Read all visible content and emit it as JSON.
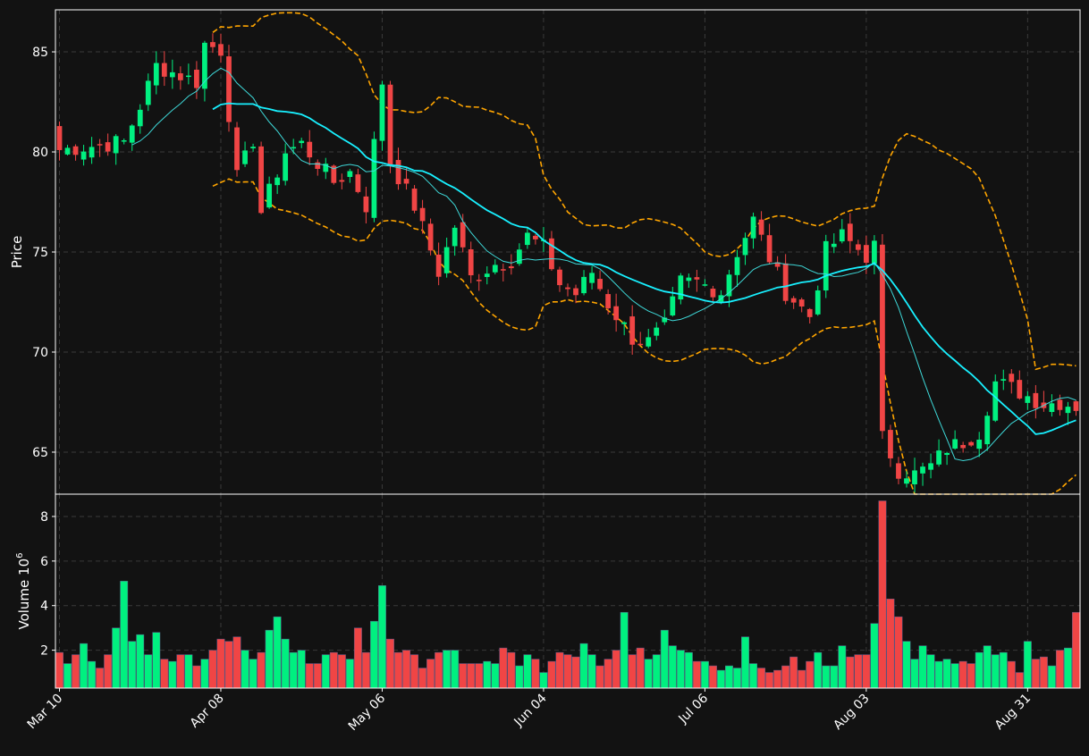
{
  "colors": {
    "background": "#121212",
    "grid": "#3a3a3a",
    "up": "#00f080",
    "down": "#f04545",
    "ma_long": "#18f0ff",
    "ma_short": "#3ed8d8",
    "bands": "#ffa500",
    "text": "#ffffff"
  },
  "chart_data": {
    "type": "candlestick",
    "grid": true,
    "price_panel": {
      "ylabel": "Price",
      "ylim": [
        62.9,
        87.1
      ],
      "yticks": [
        "65",
        "70",
        "75",
        "80",
        "85"
      ],
      "ytick_values": [
        65,
        70,
        75,
        80,
        85
      ]
    },
    "volume_panel": {
      "ylabel": "Volume",
      "ylabel_exponent": "10",
      "ylabel_exponent_power": "6",
      "ylim": [
        0.3,
        9.0
      ],
      "yticks": [
        "2",
        "4",
        "6",
        "8"
      ],
      "ytick_values": [
        2,
        4,
        6,
        8
      ]
    },
    "x_ticks": [
      {
        "label": "Mar 10",
        "index": 0
      },
      {
        "label": "Apr 08",
        "index": 20
      },
      {
        "label": "May 06",
        "index": 40
      },
      {
        "label": "Jun 04",
        "index": 60
      },
      {
        "label": "Jul 06",
        "index": 80
      },
      {
        "label": "Aug 03",
        "index": 100
      },
      {
        "label": "Aug 31",
        "index": 120
      }
    ],
    "n_bars": 127,
    "ohlc_anchors": [
      [
        0,
        80.1
      ],
      [
        8,
        80.5
      ],
      [
        10,
        82.3
      ],
      [
        12,
        84.3
      ],
      [
        17,
        83.5
      ],
      [
        18,
        85.4
      ],
      [
        20,
        85.1
      ],
      [
        22,
        78.7
      ],
      [
        24,
        80.6
      ],
      [
        25,
        77.0
      ],
      [
        28,
        80.0
      ],
      [
        30,
        80.4
      ],
      [
        34,
        78.5
      ],
      [
        36,
        79.0
      ],
      [
        38,
        77.3
      ],
      [
        40,
        83.5
      ],
      [
        41,
        79.5
      ],
      [
        44,
        77.3
      ],
      [
        47,
        74.0
      ],
      [
        49,
        76.3
      ],
      [
        51,
        73.7
      ],
      [
        54,
        74.4
      ],
      [
        56,
        74.6
      ],
      [
        58,
        75.8
      ],
      [
        60,
        75.2
      ],
      [
        62,
        73.4
      ],
      [
        64,
        72.9
      ],
      [
        66,
        74.0
      ],
      [
        68,
        72.4
      ],
      [
        71,
        70.7
      ],
      [
        73,
        70.5
      ],
      [
        75,
        71.3
      ],
      [
        77,
        73.5
      ],
      [
        79,
        73.5
      ],
      [
        82,
        73.0
      ],
      [
        84,
        75.0
      ],
      [
        86,
        76.6
      ],
      [
        88,
        74.7
      ],
      [
        90,
        73.0
      ],
      [
        93,
        71.8
      ],
      [
        95,
        75.1
      ],
      [
        97,
        75.8
      ],
      [
        100,
        74.8
      ],
      [
        101,
        75.3
      ],
      [
        102,
        65.7
      ],
      [
        104,
        64.1
      ],
      [
        106,
        63.9
      ],
      [
        108,
        64.3
      ],
      [
        110,
        65.2
      ],
      [
        112,
        65.5
      ],
      [
        114,
        66.0
      ],
      [
        116,
        68.5
      ],
      [
        118,
        68.2
      ],
      [
        120,
        67.8
      ],
      [
        122,
        67.4
      ],
      [
        124,
        67.5
      ],
      [
        126,
        67.3
      ]
    ],
    "ma_short_start": 9,
    "ma_long_start": 19,
    "volume_anchors": [
      [
        0,
        1.9
      ],
      [
        1,
        1.4
      ],
      [
        2,
        1.8
      ],
      [
        3,
        2.3
      ],
      [
        4,
        1.5
      ],
      [
        5,
        1.2
      ],
      [
        6,
        1.8
      ],
      [
        7,
        3.0
      ],
      [
        8,
        5.1
      ],
      [
        9,
        2.4
      ],
      [
        10,
        2.7
      ],
      [
        11,
        1.8
      ],
      [
        12,
        2.8
      ],
      [
        13,
        1.6
      ],
      [
        14,
        1.5
      ],
      [
        15,
        1.8
      ],
      [
        16,
        1.8
      ],
      [
        17,
        1.3
      ],
      [
        18,
        1.6
      ],
      [
        19,
        2.0
      ],
      [
        20,
        2.5
      ],
      [
        21,
        2.4
      ],
      [
        22,
        2.6
      ],
      [
        23,
        2.0
      ],
      [
        24,
        1.6
      ],
      [
        25,
        1.9
      ],
      [
        26,
        2.9
      ],
      [
        27,
        3.5
      ],
      [
        28,
        2.5
      ],
      [
        29,
        1.9
      ],
      [
        30,
        2.0
      ],
      [
        31,
        1.4
      ],
      [
        32,
        1.4
      ],
      [
        33,
        1.8
      ],
      [
        34,
        1.9
      ],
      [
        35,
        1.8
      ],
      [
        36,
        1.6
      ],
      [
        37,
        3.0
      ],
      [
        38,
        1.9
      ],
      [
        39,
        3.3
      ],
      [
        40,
        4.9
      ],
      [
        41,
        2.5
      ],
      [
        42,
        1.9
      ],
      [
        43,
        2.0
      ],
      [
        44,
        1.8
      ],
      [
        45,
        1.2
      ],
      [
        46,
        1.6
      ],
      [
        47,
        1.9
      ],
      [
        48,
        2.0
      ],
      [
        49,
        2.0
      ],
      [
        50,
        1.4
      ],
      [
        51,
        1.4
      ],
      [
        52,
        1.4
      ],
      [
        53,
        1.5
      ],
      [
        54,
        1.4
      ],
      [
        55,
        2.1
      ],
      [
        56,
        1.9
      ],
      [
        57,
        1.3
      ],
      [
        58,
        1.8
      ],
      [
        59,
        1.6
      ],
      [
        60,
        1.0
      ],
      [
        61,
        1.5
      ],
      [
        62,
        1.9
      ],
      [
        63,
        1.8
      ],
      [
        64,
        1.7
      ],
      [
        65,
        2.3
      ],
      [
        66,
        1.8
      ],
      [
        67,
        1.3
      ],
      [
        68,
        1.6
      ],
      [
        69,
        2.0
      ],
      [
        70,
        3.7
      ],
      [
        71,
        1.8
      ],
      [
        72,
        2.1
      ],
      [
        73,
        1.6
      ],
      [
        74,
        1.8
      ],
      [
        75,
        2.9
      ],
      [
        76,
        2.2
      ],
      [
        77,
        2.0
      ],
      [
        78,
        1.9
      ],
      [
        79,
        1.5
      ],
      [
        80,
        1.5
      ],
      [
        81,
        1.3
      ],
      [
        82,
        1.1
      ],
      [
        83,
        1.3
      ],
      [
        84,
        1.2
      ],
      [
        85,
        2.6
      ],
      [
        86,
        1.4
      ],
      [
        87,
        1.2
      ],
      [
        88,
        1.0
      ],
      [
        89,
        1.1
      ],
      [
        90,
        1.3
      ],
      [
        91,
        1.7
      ],
      [
        92,
        1.1
      ],
      [
        93,
        1.5
      ],
      [
        94,
        1.9
      ],
      [
        95,
        1.3
      ],
      [
        96,
        1.3
      ],
      [
        97,
        2.2
      ],
      [
        98,
        1.7
      ],
      [
        99,
        1.8
      ],
      [
        100,
        1.8
      ],
      [
        101,
        3.2
      ],
      [
        102,
        8.7
      ],
      [
        103,
        4.3
      ],
      [
        104,
        3.5
      ],
      [
        105,
        2.4
      ],
      [
        106,
        1.6
      ],
      [
        107,
        2.2
      ],
      [
        108,
        1.8
      ],
      [
        109,
        1.5
      ],
      [
        110,
        1.6
      ],
      [
        111,
        1.4
      ],
      [
        112,
        1.5
      ],
      [
        113,
        1.4
      ],
      [
        114,
        1.9
      ],
      [
        115,
        2.2
      ],
      [
        116,
        1.8
      ],
      [
        117,
        1.9
      ],
      [
        118,
        1.5
      ],
      [
        119,
        1.0
      ],
      [
        120,
        2.4
      ],
      [
        121,
        1.6
      ],
      [
        122,
        1.7
      ],
      [
        123,
        1.3
      ],
      [
        124,
        2.0
      ],
      [
        125,
        2.1
      ],
      [
        126,
        3.7
      ]
    ]
  }
}
